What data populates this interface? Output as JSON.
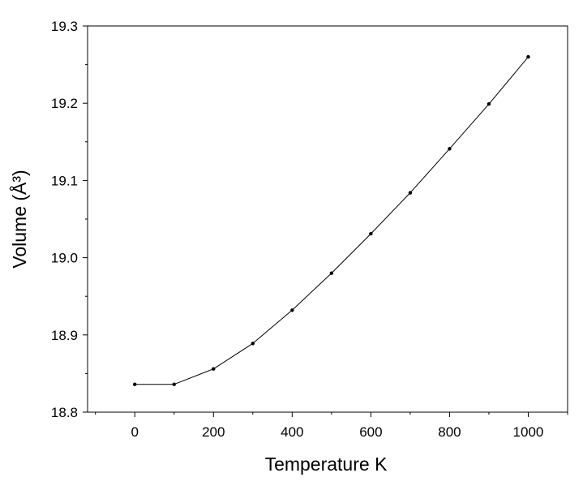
{
  "chart_data": {
    "type": "line",
    "title": "",
    "xlabel": "Temperature K",
    "ylabel": "Volume (Å³)",
    "xlim": [
      -120,
      1100
    ],
    "ylim": [
      18.8,
      19.3
    ],
    "xticks": [
      0,
      200,
      400,
      600,
      800,
      1000
    ],
    "yticks": [
      18.8,
      18.9,
      19.0,
      19.1,
      19.2,
      19.3
    ],
    "xtick_labels": [
      "0",
      "200",
      "400",
      "600",
      "800",
      "1000"
    ],
    "ytick_labels": [
      "18.8",
      "18.9",
      "19.0",
      "19.1",
      "19.2",
      "19.3"
    ],
    "grid": false,
    "legend": "none",
    "series": [
      {
        "x": [
          0,
          100,
          200,
          300,
          400,
          500,
          600,
          700,
          800,
          900,
          1000
        ],
        "y": [
          18.836,
          18.836,
          18.856,
          18.889,
          18.932,
          18.98,
          19.031,
          19.084,
          19.141,
          19.199,
          19.26
        ],
        "color": "#000000",
        "marker": "dot"
      }
    ]
  }
}
